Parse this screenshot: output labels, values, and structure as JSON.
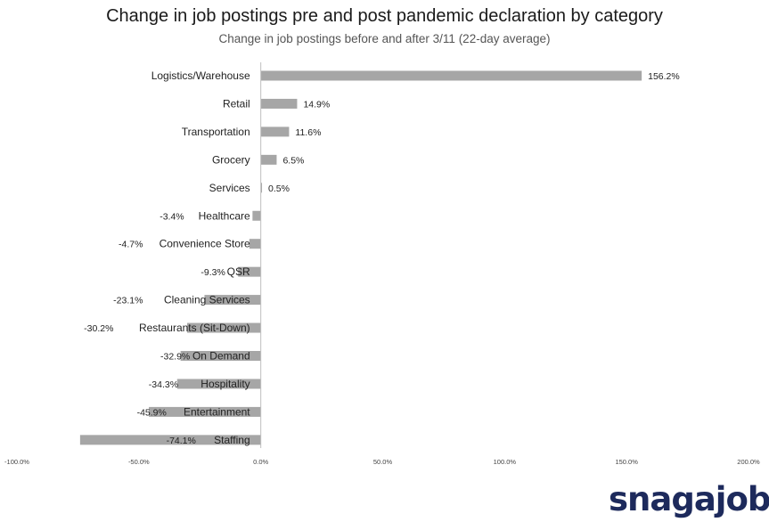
{
  "title": "Change in job postings pre and post pandemic declaration by category",
  "subtitle": "Change in job postings before and after 3/11 (22-day average)",
  "logo_text": "snagajob",
  "colors": {
    "bar": "#a6a6a6",
    "axis": "#bfbfbf",
    "logo": "#1d2a5c"
  },
  "chart_data": {
    "type": "bar",
    "orientation": "horizontal",
    "title": "Change in job postings pre and post pandemic declaration by category",
    "subtitle": "Change in job postings before and after 3/11 (22-day average)",
    "categories": [
      "Logistics/Warehouse",
      "Retail",
      "Transportation",
      "Grocery",
      "Services",
      "Healthcare",
      "Convenience Store",
      "QSR",
      "Cleaning Services",
      "Restaurants (Sit-Down)",
      "On Demand",
      "Hospitality",
      "Entertainment",
      "Staffing"
    ],
    "values": [
      156.2,
      14.9,
      11.6,
      6.5,
      0.5,
      -3.4,
      -4.7,
      -9.3,
      -23.1,
      -30.2,
      -32.9,
      -34.3,
      -45.9,
      -74.1
    ],
    "data_labels": [
      "156.2%",
      "14.9%",
      "11.6%",
      "6.5%",
      "0.5%",
      "-3.4%",
      "-4.7%",
      "-9.3%",
      "-23.1%",
      "-30.2%",
      "-32.9%",
      "-34.3%",
      "-45.9%",
      "-74.1%"
    ],
    "xlim": [
      -100,
      200
    ],
    "xticks": [
      -100,
      -50,
      0,
      50,
      100,
      150,
      200
    ],
    "xtick_labels": [
      "-100.0%",
      "-50.0%",
      "0.0%",
      "50.0%",
      "100.0%",
      "150.0%",
      "200.0%"
    ],
    "xlabel": "",
    "ylabel": "",
    "grid": false,
    "legend": "none"
  }
}
